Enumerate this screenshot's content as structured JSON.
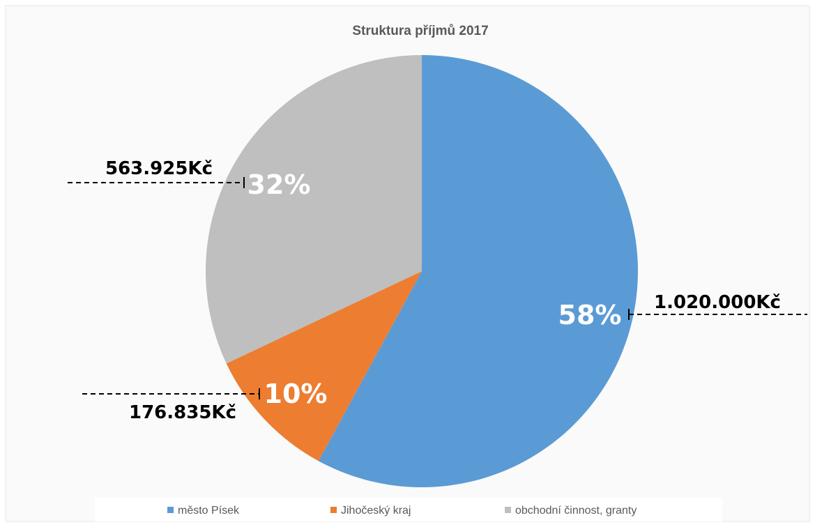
{
  "chart_data": {
    "type": "pie",
    "title": "Struktura příjmů 2017",
    "categories": [
      "město Písek",
      "Jihočeský kraj",
      "obchodní činnost, granty"
    ],
    "values": [
      1020000,
      176835,
      563925
    ],
    "percent_labels": [
      "58%",
      "10%",
      "32%"
    ],
    "amount_labels": [
      "1.020.000Kč",
      "176.835Kč",
      "563.925Kč"
    ],
    "colors": [
      "#5b9bd5",
      "#ed7d31",
      "#bfbfbf"
    ],
    "start_angle_deg": 0,
    "direction": "clockwise",
    "legend_position": "bottom"
  }
}
